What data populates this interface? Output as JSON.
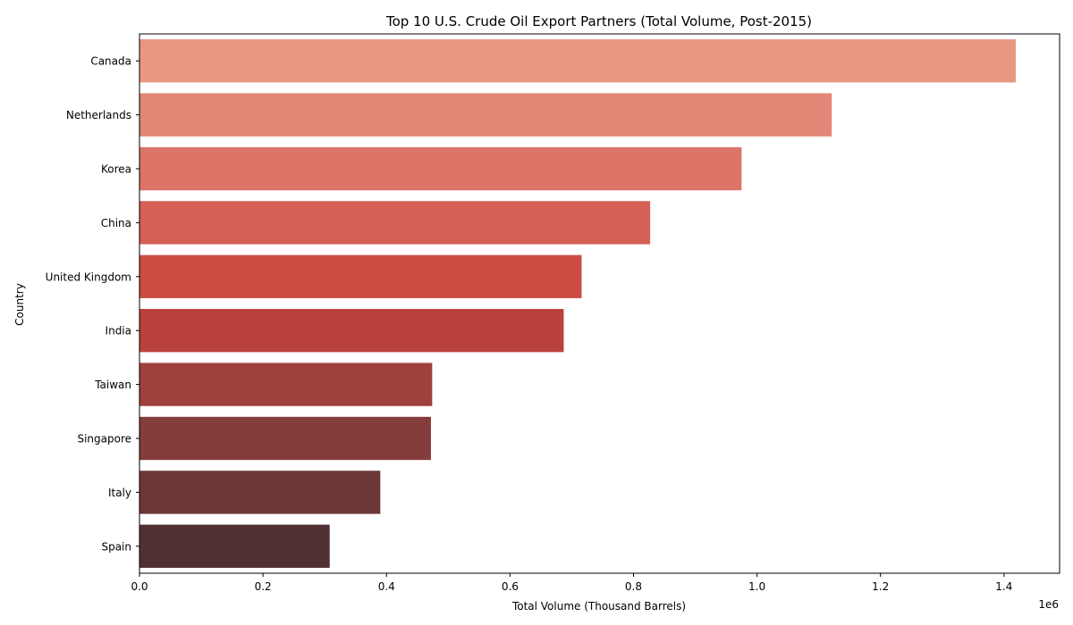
{
  "chart_data": {
    "type": "bar",
    "orientation": "horizontal",
    "title": "Top 10 U.S. Crude Oil Export Partners (Total Volume, Post-2015)",
    "xlabel": "Total Volume (Thousand Barrels)",
    "ylabel": "Country",
    "x_scale_label": "1e6",
    "xlim": [
      0,
      1.49
    ],
    "x_ticks": [
      0.0,
      0.2,
      0.4,
      0.6,
      0.8,
      1.0,
      1.2,
      1.4
    ],
    "x_tick_labels": [
      "0.0",
      "0.2",
      "0.4",
      "0.6",
      "0.8",
      "1.0",
      "1.2",
      "1.4"
    ],
    "categories": [
      "Canada",
      "Netherlands",
      "Korea",
      "China",
      "United Kingdom",
      "India",
      "Taiwan",
      "Singapore",
      "Italy",
      "Spain"
    ],
    "values": [
      1.419,
      1.121,
      0.975,
      0.827,
      0.716,
      0.687,
      0.474,
      0.472,
      0.39,
      0.308
    ],
    "colors": [
      "#e89882",
      "#e28675",
      "#dc7467",
      "#d56157",
      "#cd4d44",
      "#ba423c",
      "#a0403c",
      "#853d3c",
      "#6b3637",
      "#513033"
    ],
    "grid": false,
    "legend": "none"
  }
}
